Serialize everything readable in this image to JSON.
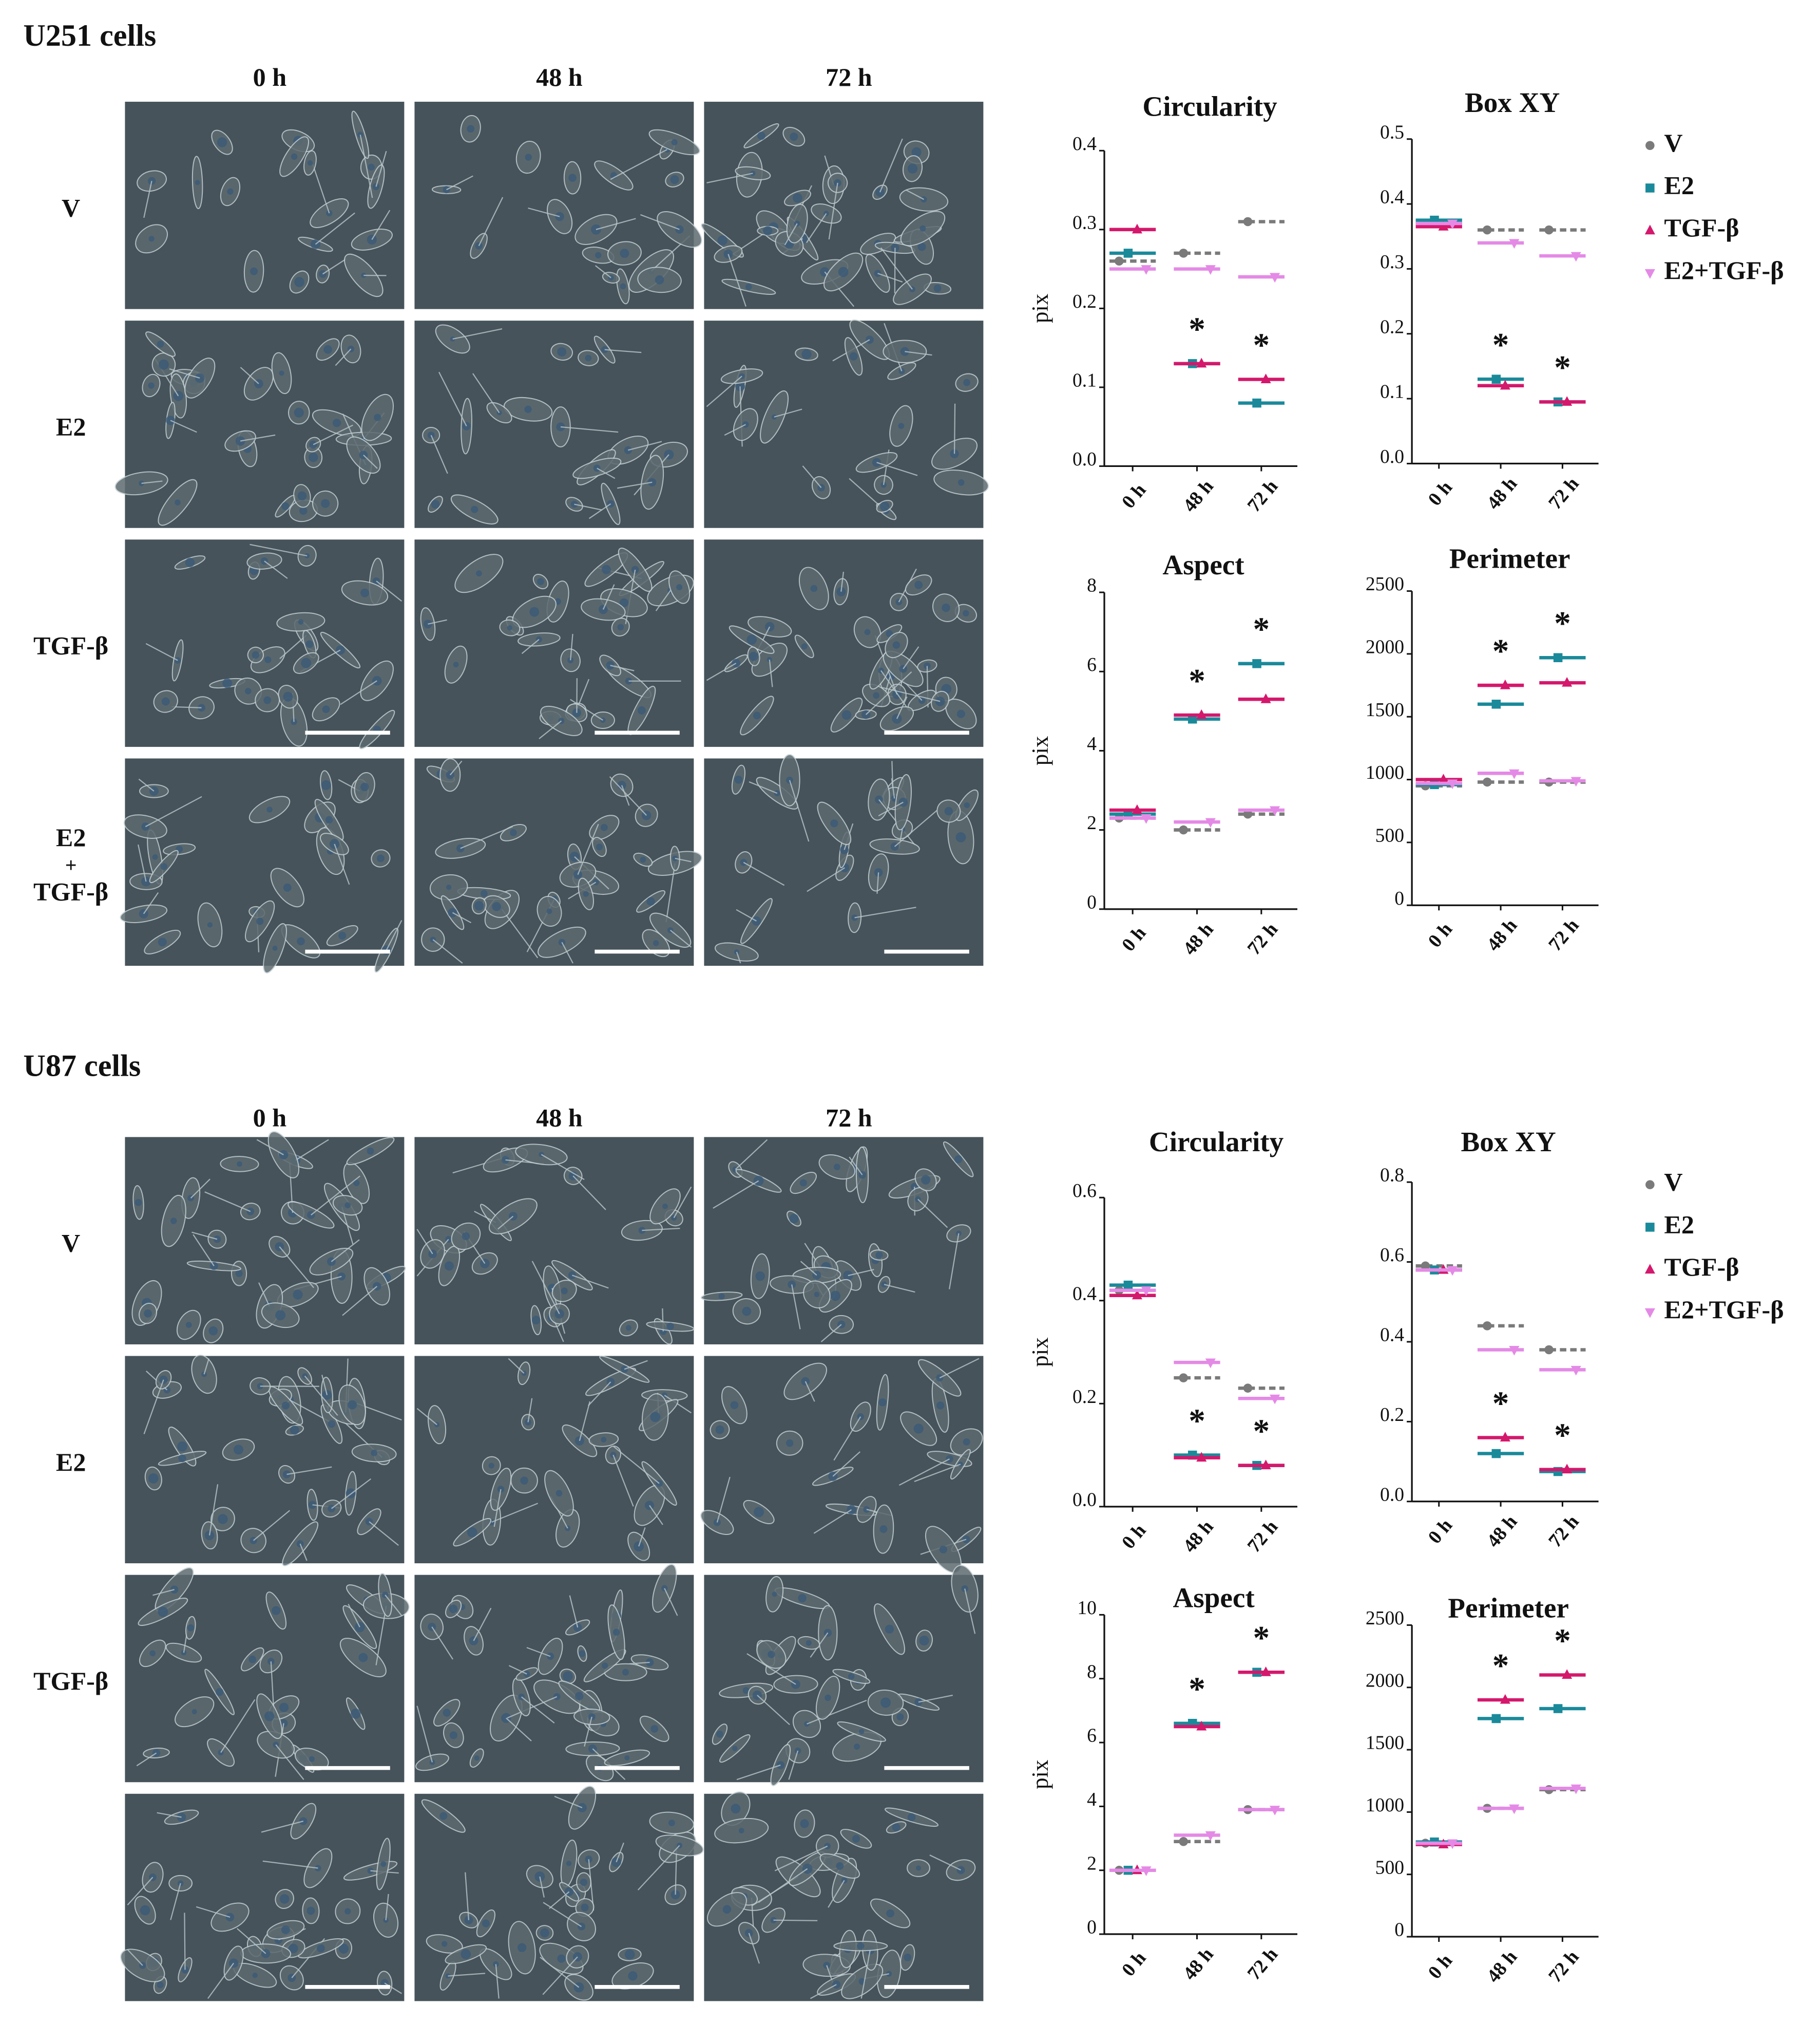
{
  "panels": [
    {
      "title": "U251 cells",
      "columns": [
        "0 h",
        "48 h",
        "72 h"
      ],
      "rows": [
        [
          "V"
        ],
        [
          "E2"
        ],
        [
          "TGF-β"
        ],
        [
          "E2",
          "+",
          "TGF-β"
        ]
      ]
    },
    {
      "title": "U87 cells",
      "columns": [
        "0 h",
        "48 h",
        "72 h"
      ],
      "rows": [
        [
          "V"
        ],
        [
          "E2"
        ],
        [
          "TGF-β"
        ]
      ]
    }
  ],
  "chart_data": [
    {
      "type": "scatter",
      "title": "Circularity",
      "y_label": "pix",
      "categories": [
        "0 h",
        "48 h",
        "72 h"
      ],
      "ylim": [
        0,
        0.4
      ],
      "yticks": [
        {
          "value": 0,
          "label": "0.0"
        },
        0.1,
        0.2,
        0.3,
        0.4
      ],
      "annotations": [
        null,
        "*",
        "*"
      ],
      "series": [
        {
          "color": "#7a7a7a",
          "marker": "circle",
          "dash": true,
          "values": [
            0.26,
            0.27,
            0.31
          ]
        },
        {
          "color": "#1a8a9a",
          "marker": "square",
          "values": [
            0.27,
            0.13,
            0.08
          ]
        },
        {
          "color": "#d4186c",
          "marker": "triangle-up",
          "values": [
            0.3,
            0.13,
            0.11
          ]
        },
        {
          "color": "#e48ae6",
          "marker": "triangle-down",
          "values": [
            0.25,
            0.25,
            0.24
          ]
        }
      ]
    },
    {
      "type": "scatter",
      "title": "Box XY",
      "categories": [
        "0 h",
        "48 h",
        "72 h"
      ],
      "ylim": [
        0,
        0.5
      ],
      "yticks": [
        {
          "value": 0,
          "label": "0.0"
        },
        0.1,
        0.2,
        0.3,
        0.4,
        0.5
      ],
      "annotations": [
        null,
        "*",
        "*"
      ],
      "legend": "right",
      "series": [
        {
          "name": "V",
          "color": "#7a7a7a",
          "marker": "circle",
          "dash": true,
          "values": [
            0.37,
            0.36,
            0.36
          ]
        },
        {
          "name": "E2",
          "color": "#1a8a9a",
          "marker": "square",
          "values": [
            0.375,
            0.13,
            0.095
          ]
        },
        {
          "name": "TGF-β",
          "color": "#d4186c",
          "marker": "triangle-up",
          "values": [
            0.365,
            0.12,
            0.095
          ]
        },
        {
          "name": "E2+TGF-β",
          "color": "#e48ae6",
          "marker": "triangle-down",
          "values": [
            0.37,
            0.34,
            0.32
          ]
        }
      ]
    },
    {
      "type": "scatter",
      "title": "Aspect",
      "y_label": "pix",
      "categories": [
        "0 h",
        "48 h",
        "72 h"
      ],
      "ylim": [
        0,
        8
      ],
      "yticks": [
        0,
        2,
        4,
        6,
        8
      ],
      "annotations": [
        null,
        "*",
        "*"
      ],
      "series": [
        {
          "color": "#7a7a7a",
          "marker": "circle",
          "dash": true,
          "values": [
            2.3,
            2.0,
            2.4
          ]
        },
        {
          "color": "#1a8a9a",
          "marker": "square",
          "values": [
            2.4,
            4.8,
            6.2
          ]
        },
        {
          "color": "#d4186c",
          "marker": "triangle-up",
          "values": [
            2.5,
            4.9,
            5.3
          ]
        },
        {
          "color": "#e48ae6",
          "marker": "triangle-down",
          "values": [
            2.3,
            2.2,
            2.5
          ]
        }
      ]
    },
    {
      "type": "scatter",
      "title": "Perimeter",
      "categories": [
        "0 h",
        "48 h",
        "72 h"
      ],
      "ylim": [
        0,
        2500
      ],
      "yticks": [
        0,
        500,
        1000,
        1500,
        2000,
        2500
      ],
      "annotations": [
        null,
        "*",
        "*"
      ],
      "series": [
        {
          "color": "#7a7a7a",
          "marker": "circle",
          "dash": true,
          "values": [
            950,
            980,
            980
          ]
        },
        {
          "color": "#1a8a9a",
          "marker": "square",
          "values": [
            960,
            1600,
            1970
          ]
        },
        {
          "color": "#d4186c",
          "marker": "triangle-up",
          "values": [
            1000,
            1750,
            1770
          ]
        },
        {
          "color": "#e48ae6",
          "marker": "triangle-down",
          "values": [
            970,
            1050,
            990
          ]
        }
      ]
    },
    {
      "type": "scatter",
      "title": "Circularity",
      "y_label": "pix",
      "categories": [
        "0 h",
        "48 h",
        "72 h"
      ],
      "ylim": [
        0,
        0.6
      ],
      "yticks": [
        {
          "value": 0,
          "label": "0.0"
        },
        0.2,
        0.4,
        0.6
      ],
      "annotations": [
        null,
        "*",
        "*"
      ],
      "series": [
        {
          "color": "#7a7a7a",
          "marker": "circle",
          "dash": true,
          "values": [
            0.42,
            0.25,
            0.23
          ]
        },
        {
          "color": "#1a8a9a",
          "marker": "square",
          "values": [
            0.43,
            0.1,
            0.08
          ]
        },
        {
          "color": "#d4186c",
          "marker": "triangle-up",
          "values": [
            0.41,
            0.095,
            0.08
          ]
        },
        {
          "color": "#e48ae6",
          "marker": "triangle-down",
          "values": [
            0.42,
            0.28,
            0.21
          ]
        }
      ]
    },
    {
      "type": "scatter",
      "title": "Box XY",
      "categories": [
        "0 h",
        "48 h",
        "72 h"
      ],
      "ylim": [
        0,
        0.8
      ],
      "yticks": [
        {
          "value": 0,
          "label": "0.0"
        },
        0.2,
        0.4,
        0.6,
        0.8
      ],
      "annotations": [
        null,
        "*",
        "*"
      ],
      "legend": "right",
      "series": [
        {
          "name": "V",
          "color": "#7a7a7a",
          "marker": "circle",
          "dash": true,
          "values": [
            0.59,
            0.44,
            0.38
          ]
        },
        {
          "name": "E2",
          "color": "#1a8a9a",
          "marker": "square",
          "values": [
            0.58,
            0.12,
            0.075
          ]
        },
        {
          "name": "TGF-β",
          "color": "#d4186c",
          "marker": "triangle-up",
          "values": [
            0.58,
            0.16,
            0.08
          ]
        },
        {
          "name": "E2+TGF-β",
          "color": "#e48ae6",
          "marker": "triangle-down",
          "values": [
            0.58,
            0.38,
            0.33
          ]
        }
      ]
    },
    {
      "type": "scatter",
      "title": "Aspect",
      "y_label": "pix",
      "categories": [
        "0 h",
        "48 h",
        "72 h"
      ],
      "ylim": [
        0,
        10
      ],
      "yticks": [
        0,
        2,
        4,
        6,
        8,
        10
      ],
      "annotations": [
        null,
        "*",
        "*"
      ],
      "series": [
        {
          "color": "#7a7a7a",
          "marker": "circle",
          "dash": true,
          "values": [
            2.0,
            2.9,
            3.9
          ]
        },
        {
          "color": "#1a8a9a",
          "marker": "square",
          "values": [
            2.0,
            6.6,
            8.2
          ]
        },
        {
          "color": "#d4186c",
          "marker": "triangle-up",
          "values": [
            2.0,
            6.5,
            8.2
          ]
        },
        {
          "color": "#e48ae6",
          "marker": "triangle-down",
          "values": [
            2.0,
            3.1,
            3.9
          ]
        }
      ]
    },
    {
      "type": "scatter",
      "title": "Perimeter",
      "categories": [
        "0 h",
        "48 h",
        "72 h"
      ],
      "ylim": [
        0,
        2500
      ],
      "yticks": [
        0,
        500,
        1000,
        1500,
        2000,
        2500
      ],
      "annotations": [
        null,
        "*",
        "*"
      ],
      "series": [
        {
          "color": "#7a7a7a",
          "marker": "circle",
          "dash": true,
          "values": [
            750,
            1030,
            1180
          ]
        },
        {
          "color": "#1a8a9a",
          "marker": "square",
          "values": [
            760,
            1750,
            1830
          ]
        },
        {
          "color": "#d4186c",
          "marker": "triangle-up",
          "values": [
            740,
            1900,
            2100
          ]
        },
        {
          "color": "#e48ae6",
          "marker": "triangle-down",
          "values": [
            750,
            1030,
            1190
          ]
        }
      ]
    }
  ]
}
